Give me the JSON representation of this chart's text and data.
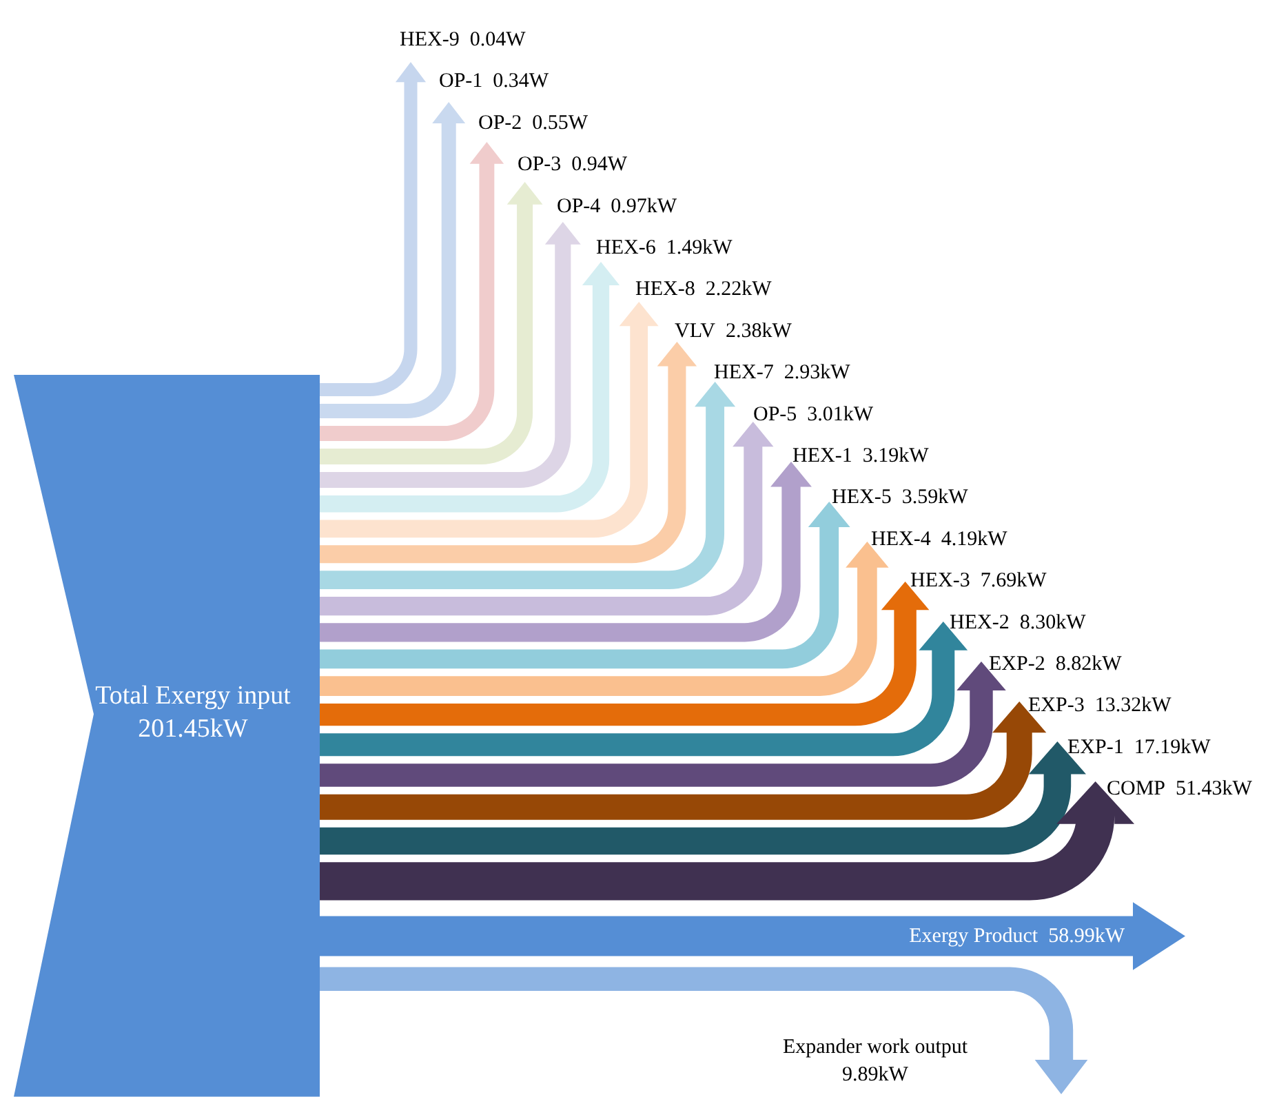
{
  "chart_data": {
    "type": "other",
    "categories": [
      "Total Exergy input",
      "HEX-9",
      "OP-1",
      "OP-2",
      "OP-3",
      "OP-4",
      "HEX-6",
      "HEX-8",
      "VLV",
      "HEX-7",
      "OP-5",
      "HEX-1",
      "HEX-5",
      "HEX-4",
      "HEX-3",
      "HEX-2",
      "EXP-2",
      "EXP-3",
      "EXP-1",
      "COMP",
      "Exergy Product",
      "Expander work output"
    ],
    "values": [
      201.45,
      0.04,
      0.34,
      0.55,
      0.94,
      0.97,
      1.49,
      2.22,
      2.38,
      2.93,
      3.01,
      3.19,
      3.59,
      4.19,
      7.69,
      8.3,
      8.82,
      13.32,
      17.19,
      51.43,
      58.99,
      9.89
    ],
    "value_labels": [
      "201.45kW",
      "0.04W",
      "0.34W",
      "0.55W",
      "0.94W",
      "0.97kW",
      "1.49kW",
      "2.22kW",
      "2.38kW",
      "2.93kW",
      "3.01kW",
      "3.19kW",
      "3.59kW",
      "4.19kW",
      "7.69kW",
      "8.30kW",
      "8.82kW",
      "13.32kW",
      "17.19kW",
      "51.43kW",
      "58.99kW",
      "9.89kW"
    ],
    "colors": [
      "#558ed5",
      "#c6d6ee",
      "#c9d9ef",
      "#f0cccc",
      "#e6ecd2",
      "#ddd5e6",
      "#d4eef2",
      "#fde3cf",
      "#fbcda8",
      "#a8d8e4",
      "#c8bcdc",
      "#b1a0cb",
      "#92cddc",
      "#fac08f",
      "#e46c0a",
      "#31859c",
      "#604a7b",
      "#974806",
      "#215968",
      "#403151",
      "#558ed5",
      "#8eb4e3"
    ]
  }
}
